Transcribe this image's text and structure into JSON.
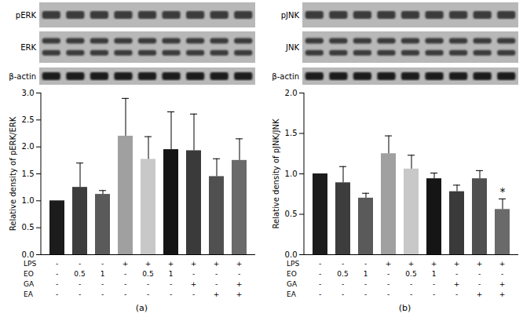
{
  "chart_data": [
    {
      "type": "bar",
      "panel_label": "(a)",
      "blots": [
        "pERK",
        "ERK",
        "β-actin"
      ],
      "y_label": "Relative density of pERK/ERK",
      "categories": [
        null,
        null,
        null,
        null,
        null,
        null,
        null,
        null,
        null
      ],
      "values": [
        1.0,
        1.25,
        1.12,
        2.2,
        1.77,
        1.95,
        1.93,
        1.45,
        1.75
      ],
      "errors": [
        null,
        0.45,
        0.07,
        0.7,
        0.42,
        0.7,
        0.68,
        0.33,
        0.4
      ],
      "colors": [
        "#1c1c1c",
        "#3d3d3d",
        "#5a5a5a",
        "#a0a0a0",
        "#c8c8c8",
        "#151515",
        "#3a3a3a",
        "#505050",
        "#6a6a6a"
      ],
      "ylim": [
        0,
        3
      ],
      "yticks": [
        {
          "value": 0,
          "label": "0.0"
        },
        0.5,
        {
          "value": 1,
          "label": "1.0"
        },
        1.5,
        {
          "value": 2,
          "label": "2.0"
        },
        2.5,
        {
          "value": 3,
          "label": "3.0"
        }
      ],
      "tick_labels": "y",
      "conditions": [
        {
          "name": "LPS",
          "values": [
            "-",
            "-",
            "-",
            "+",
            "+",
            "+",
            "+",
            "+",
            "+"
          ]
        },
        {
          "name": "EO",
          "values": [
            "-",
            "0.5",
            "1",
            "-",
            "0.5",
            "1",
            "-",
            "-",
            "-"
          ]
        },
        {
          "name": "GA",
          "values": [
            "-",
            "-",
            "-",
            "-",
            "-",
            "-",
            "+",
            "-",
            "+"
          ]
        },
        {
          "name": "EA",
          "values": [
            "-",
            "-",
            "-",
            "-",
            "-",
            "-",
            "-",
            "+",
            "+"
          ]
        }
      ],
      "annotations": []
    },
    {
      "type": "bar",
      "panel_label": "(b)",
      "blots": [
        "pJNK",
        "JNK",
        "β-actin"
      ],
      "y_label": "Relative density of pJNK/JNK",
      "categories": [
        null,
        null,
        null,
        null,
        null,
        null,
        null,
        null,
        null
      ],
      "values": [
        1.0,
        0.89,
        0.7,
        1.25,
        1.06,
        0.94,
        0.78,
        0.94,
        0.56
      ],
      "errors": [
        null,
        0.2,
        0.06,
        0.22,
        0.17,
        0.07,
        0.08,
        0.1,
        0.13
      ],
      "colors": [
        "#1c1c1c",
        "#3d3d3d",
        "#5a5a5a",
        "#a0a0a0",
        "#c8c8c8",
        "#151515",
        "#3a3a3a",
        "#505050",
        "#6a6a6a"
      ],
      "ylim": [
        0,
        2
      ],
      "yticks": [
        {
          "value": 0,
          "label": "0.0"
        },
        0.5,
        {
          "value": 1,
          "label": "1.0"
        },
        1.5,
        {
          "value": 2,
          "label": "2.0"
        }
      ],
      "tick_labels": "y",
      "conditions": [
        {
          "name": "LPS",
          "values": [
            "-",
            "-",
            "-",
            "+",
            "+",
            "+",
            "+",
            "+",
            "+"
          ]
        },
        {
          "name": "EO",
          "values": [
            "-",
            "0.5",
            "1",
            "-",
            "0.5",
            "1",
            "-",
            "-",
            "-"
          ]
        },
        {
          "name": "GA",
          "values": [
            "-",
            "-",
            "-",
            "-",
            "-",
            "-",
            "+",
            "-",
            "+"
          ]
        },
        {
          "name": "EA",
          "values": [
            "-",
            "-",
            "-",
            "-",
            "-",
            "-",
            "-",
            "+",
            "+"
          ]
        }
      ],
      "annotations": [
        {
          "index": 8,
          "text": "*"
        }
      ]
    }
  ]
}
